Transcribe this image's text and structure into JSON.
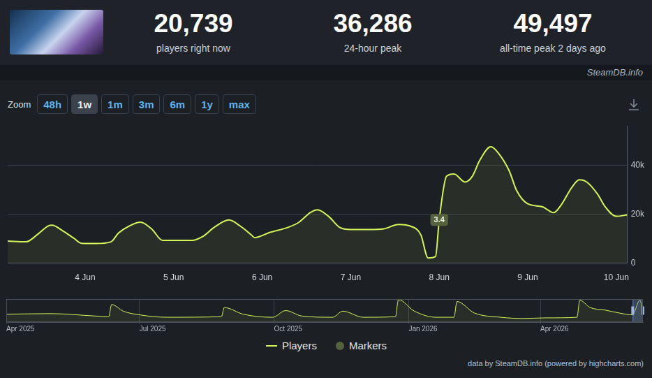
{
  "header": {
    "stats": [
      {
        "value": "20,739",
        "label": "players right now"
      },
      {
        "value": "36,286",
        "label": "24-hour peak"
      },
      {
        "value": "49,497",
        "label": "all-time peak 2 days ago"
      }
    ],
    "source": "SteamDB.info"
  },
  "zoom": {
    "label": "Zoom",
    "buttons": [
      "48h",
      "1w",
      "1m",
      "3m",
      "6m",
      "1y",
      "max"
    ],
    "selected": "1w"
  },
  "chart_data": [
    {
      "type": "line",
      "x": [
        "2026-06-03T03:00",
        "2026-06-03T08:00",
        "2026-06-03T11:00",
        "2026-06-03T14:00",
        "2026-06-03T15:00",
        "2026-06-03T18:00",
        "2026-06-03T21:00",
        "2026-06-03T23:00",
        "2026-06-04T03:00",
        "2026-06-04T07:00",
        "2026-06-04T09:00",
        "2026-06-04T12:00",
        "2026-06-04T15:00",
        "2026-06-04T18:00",
        "2026-06-04T21:00",
        "2026-06-05T01:00",
        "2026-06-05T05:00",
        "2026-06-05T08:00",
        "2026-06-05T11:00",
        "2026-06-05T15:00",
        "2026-06-05T18:00",
        "2026-06-05T21:00",
        "2026-06-05T22:00",
        "2026-06-06T02:00",
        "2026-06-06T07:00",
        "2026-06-06T10:00",
        "2026-06-06T13:00",
        "2026-06-06T15:00",
        "2026-06-06T18:00",
        "2026-06-06T21:00",
        "2026-06-07T00:00",
        "2026-06-07T05:00",
        "2026-06-07T09:00",
        "2026-06-07T13:00",
        "2026-06-07T16:00",
        "2026-06-07T19:00",
        "2026-06-07T21:00",
        "2026-06-07T23:00",
        "2026-06-08T00:00",
        "2026-06-08T02:00",
        "2026-06-08T04:00",
        "2026-06-08T07:00",
        "2026-06-08T09:00",
        "2026-06-08T11:00",
        "2026-06-08T14:00",
        "2026-06-08T16:00",
        "2026-06-08T19:00",
        "2026-06-08T21:00",
        "2026-06-09T00:00",
        "2026-06-09T04:00",
        "2026-06-09T07:00",
        "2026-06-09T09:00",
        "2026-06-09T12:00",
        "2026-06-09T14:00",
        "2026-06-09T16:00",
        "2026-06-09T19:00",
        "2026-06-09T21:00",
        "2026-06-10T00:00",
        "2026-06-10T03:00"
      ],
      "series": [
        {
          "name": "Players",
          "color": "#d4f55a",
          "values": [
            9000,
            8700,
            11600,
            15200,
            15500,
            13100,
            10100,
            8100,
            8000,
            8700,
            12200,
            15200,
            16700,
            14000,
            9300,
            9300,
            9300,
            11000,
            14600,
            17600,
            15200,
            11600,
            10400,
            12500,
            14600,
            16700,
            20600,
            21800,
            19100,
            14600,
            13700,
            13700,
            14000,
            15800,
            15200,
            11600,
            2100,
            2700,
            17600,
            35500,
            36400,
            33100,
            35500,
            42000,
            47500,
            45000,
            37600,
            29600,
            24200,
            23000,
            20600,
            23600,
            31000,
            34000,
            33100,
            28000,
            23000,
            19100,
            19700
          ]
        }
      ],
      "markers": {
        "name": "Markers",
        "color": "#55623e",
        "points": [
          {
            "x": "2026-06-08T00:00",
            "label": "3.4"
          }
        ]
      },
      "xlim": [
        "2026-06-03T03:00",
        "2026-06-10T03:00"
      ],
      "xticks": [
        {
          "value": "2026-06-04T00:00",
          "label": "4 Jun"
        },
        {
          "value": "2026-06-05T00:00",
          "label": "5 Jun"
        },
        {
          "value": "2026-06-06T00:00",
          "label": "6 Jun"
        },
        {
          "value": "2026-06-07T00:00",
          "label": "7 Jun"
        },
        {
          "value": "2026-06-08T00:00",
          "label": "8 Jun"
        },
        {
          "value": "2026-06-09T00:00",
          "label": "9 Jun"
        },
        {
          "value": "2026-06-10T00:00",
          "label": "10 Jun"
        }
      ],
      "ylim": [
        0,
        56000
      ],
      "yticks": [
        0,
        {
          "value": 20000,
          "label": "20k"
        },
        {
          "value": 40000,
          "label": "40k"
        }
      ],
      "grid": "y",
      "legend": "bottom"
    },
    {
      "type": "line",
      "x": [
        "2025-04-01T00:00",
        "2025-05-01T00:00",
        "2025-06-01T00:00",
        "2025-06-10T00:00",
        "2025-06-12T00:00",
        "2025-06-20T00:00",
        "2025-07-01T00:00",
        "2025-07-20T00:00",
        "2025-08-26T00:00",
        "2025-08-28T00:00",
        "2025-09-10T00:00",
        "2025-09-30T00:00",
        "2025-10-09T00:00",
        "2025-10-20T00:00",
        "2025-11-10T00:00",
        "2025-11-17T00:00",
        "2025-12-01T00:00",
        "2025-12-23T00:00",
        "2025-12-25T00:00",
        "2026-01-05T00:00",
        "2026-01-20T00:00",
        "2026-02-01T00:00",
        "2026-02-03T00:00",
        "2026-02-15T00:00",
        "2026-03-05T00:00",
        "2026-03-20T00:00",
        "2026-04-05T00:00",
        "2026-04-26T00:00",
        "2026-04-28T00:00",
        "2026-05-05T00:00",
        "2026-05-15T00:00",
        "2026-05-25T00:00",
        "2026-06-03T00:00",
        "2026-06-08T00:00",
        "2026-06-10T00:00"
      ],
      "series": [
        {
          "color": "#d4f55a",
          "values": [
            17100,
            18400,
            13200,
            11800,
            38200,
            23700,
            15800,
            10500,
            11800,
            31600,
            17100,
            10500,
            25000,
            13200,
            10500,
            23700,
            10500,
            11800,
            48700,
            23700,
            10500,
            10500,
            44700,
            19700,
            10500,
            7900,
            9200,
            10500,
            47400,
            31600,
            26300,
            19700,
            15800,
            47500,
            23700
          ]
        }
      ],
      "xlim": [
        "2025-04-01T00:00",
        "2026-06-10T03:00"
      ],
      "xticks": [
        {
          "value": "2025-04-01T00:00",
          "label": "Apr 2025"
        },
        {
          "value": "2025-07-01T00:00",
          "label": "Jul 2025"
        },
        {
          "value": "2025-10-01T00:00",
          "label": "Oct 2025"
        },
        {
          "value": "2026-01-01T00:00",
          "label": "Jan 2026"
        },
        {
          "value": "2026-04-01T00:00",
          "label": "Apr 2026"
        }
      ],
      "ylim": [
        0,
        50000
      ],
      "grid": "x",
      "tick_labels": "x"
    }
  ],
  "credit": "data by SteamDB.info (powered by highcharts.com)"
}
